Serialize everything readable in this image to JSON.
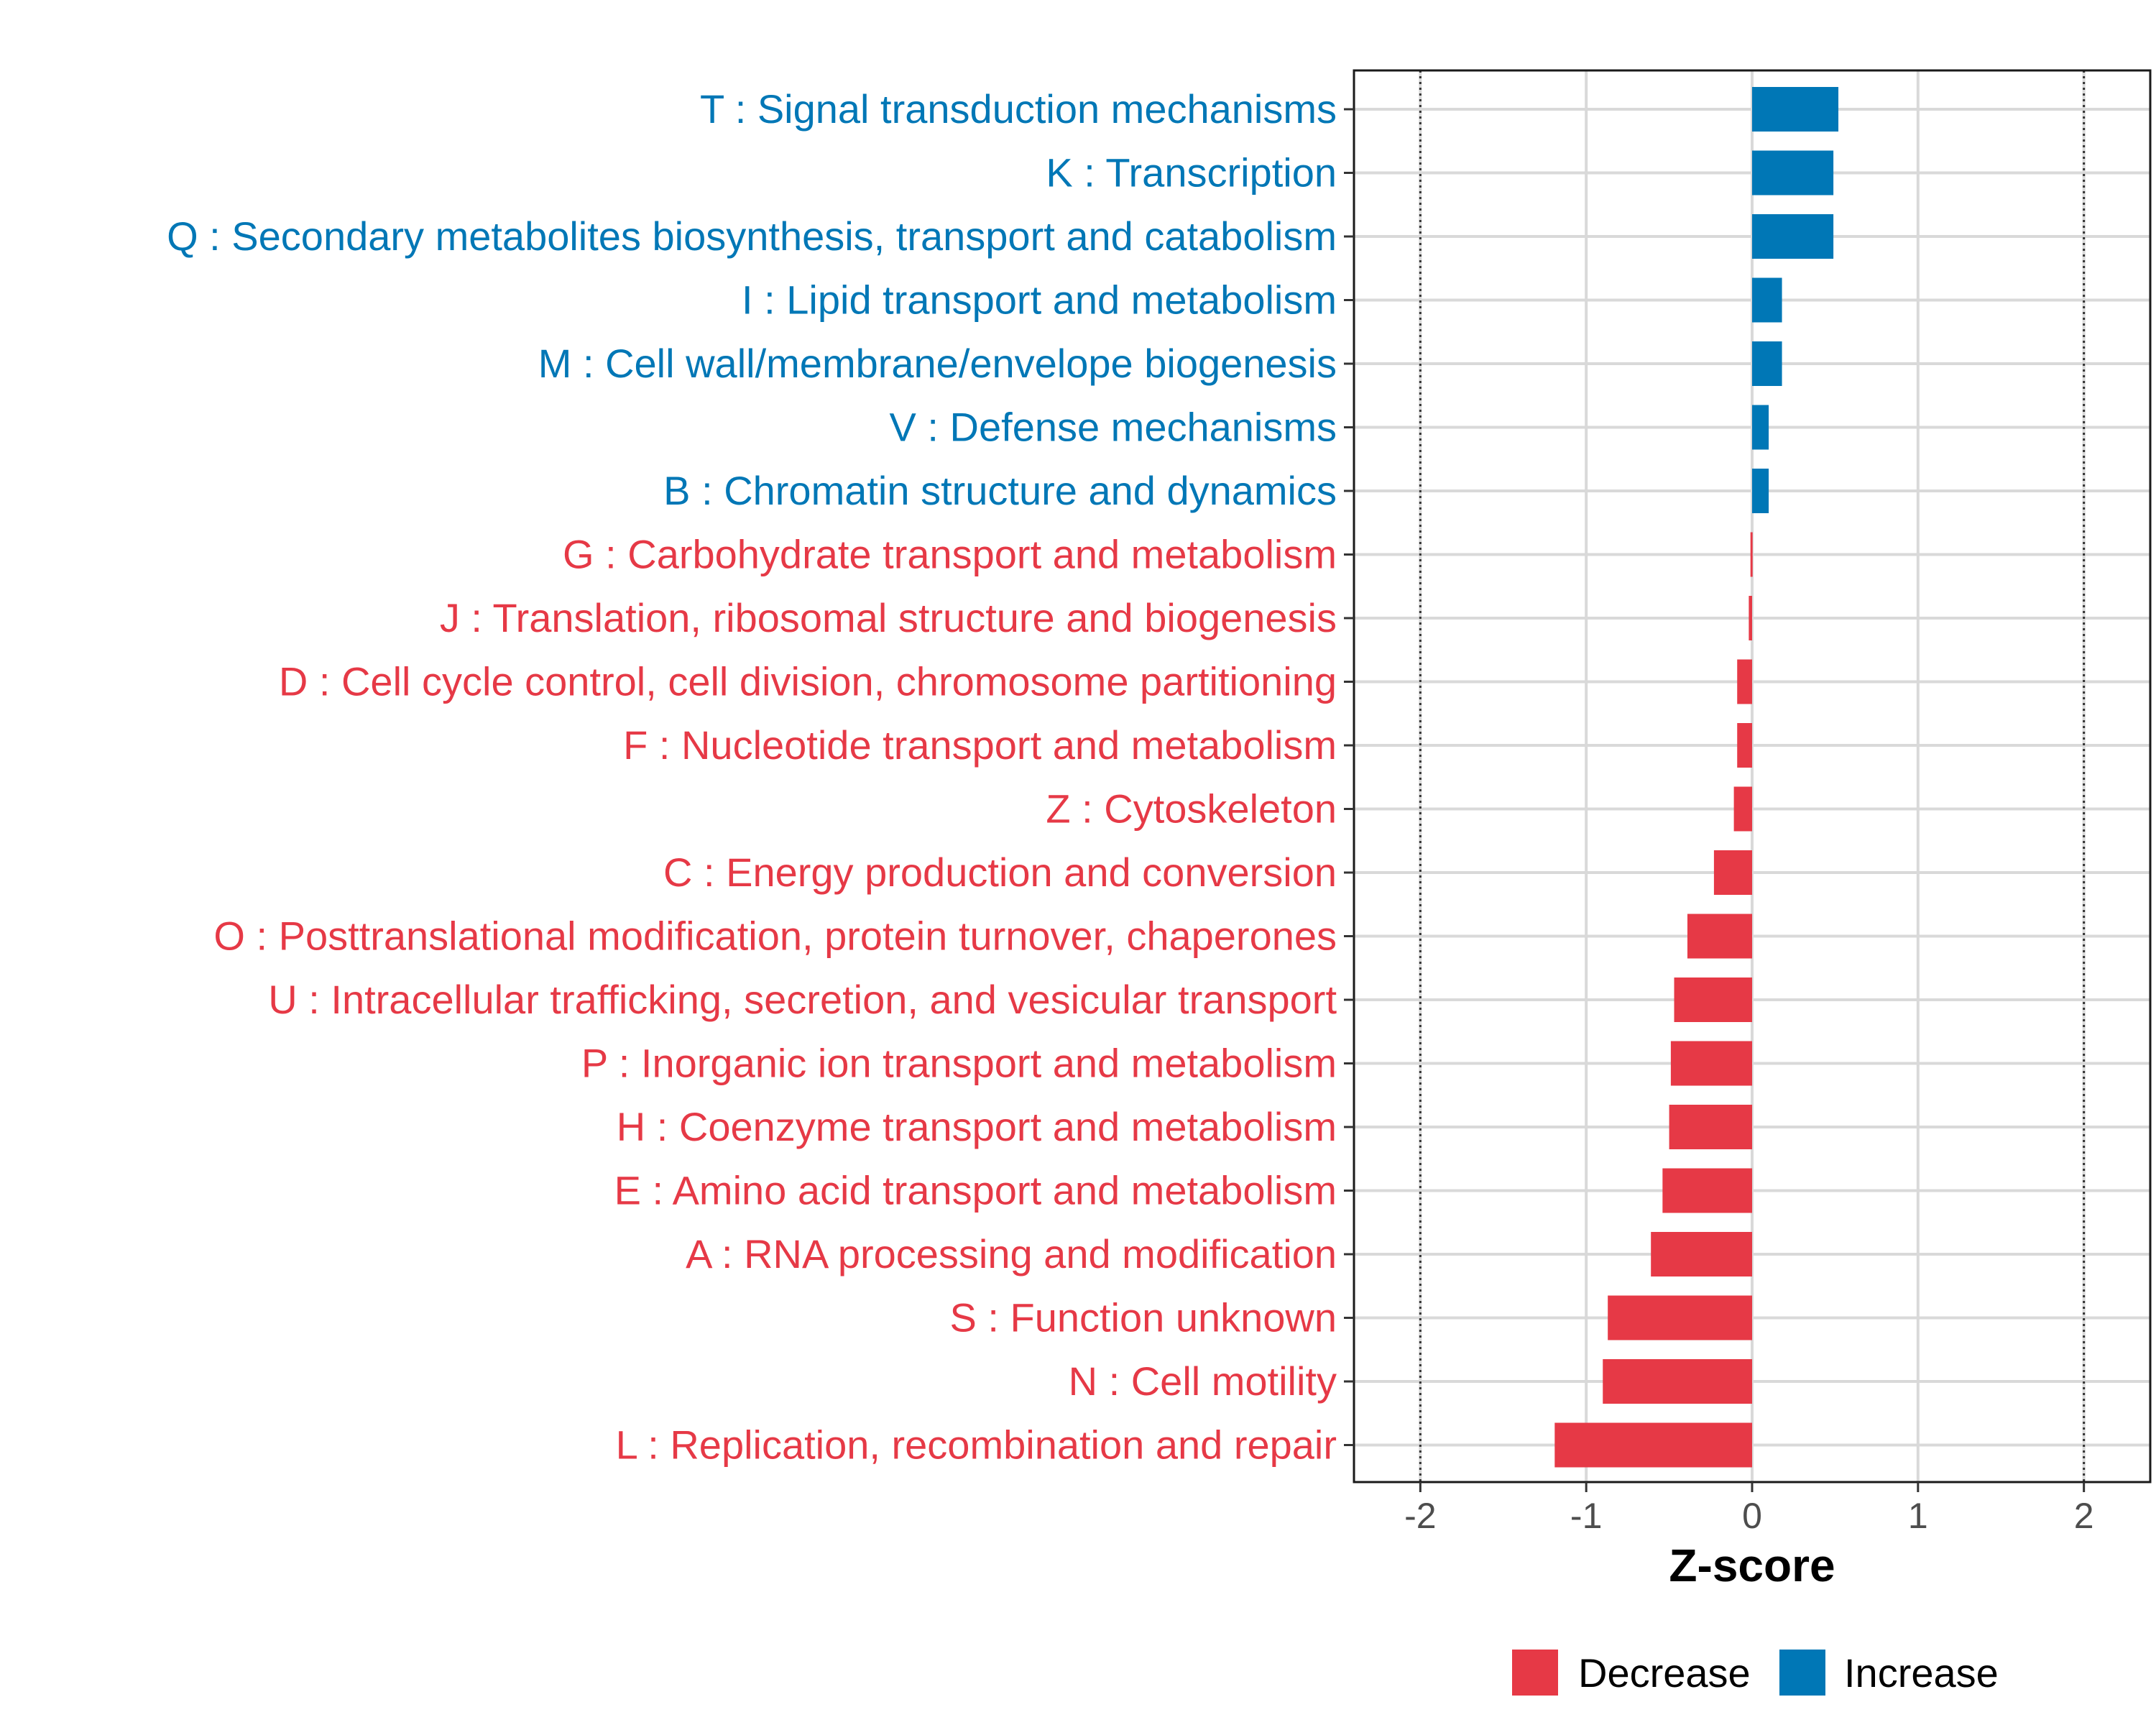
{
  "chart_data": {
    "type": "bar",
    "orientation": "horizontal",
    "title": "",
    "xlabel": "Z-score",
    "ylabel": "",
    "xlim": [
      -2.4,
      2.4
    ],
    "x_ticks": [
      -2,
      -1,
      0,
      1,
      2
    ],
    "x_tick_labels": [
      "-2",
      "-1",
      "0",
      "1",
      "2"
    ],
    "reference_lines": [
      -2,
      2
    ],
    "grid": true,
    "legend_position": "bottom",
    "colors": {
      "Decrease": "#e63946",
      "Increase": "#0077b6"
    },
    "legend": [
      {
        "name": "Decrease",
        "color": "#e63946"
      },
      {
        "name": "Increase",
        "color": "#0077b6"
      }
    ],
    "bars": [
      {
        "label": "T : Signal transduction mechanisms",
        "value": 0.52,
        "direction": "Increase"
      },
      {
        "label": "K : Transcription",
        "value": 0.49,
        "direction": "Increase"
      },
      {
        "label": "Q : Secondary metabolites biosynthesis, transport and catabolism",
        "value": 0.49,
        "direction": "Increase"
      },
      {
        "label": "I : Lipid transport and metabolism",
        "value": 0.18,
        "direction": "Increase"
      },
      {
        "label": "M : Cell wall/membrane/envelope biogenesis",
        "value": 0.18,
        "direction": "Increase"
      },
      {
        "label": "V : Defense mechanisms",
        "value": 0.1,
        "direction": "Increase"
      },
      {
        "label": "B : Chromatin structure and dynamics",
        "value": 0.1,
        "direction": "Increase"
      },
      {
        "label": "G : Carbohydrate transport and metabolism",
        "value": -0.01,
        "direction": "Decrease"
      },
      {
        "label": "J : Translation, ribosomal structure and biogenesis",
        "value": -0.02,
        "direction": "Decrease"
      },
      {
        "label": "D : Cell cycle control, cell division, chromosome partitioning",
        "value": -0.09,
        "direction": "Decrease"
      },
      {
        "label": "F : Nucleotide transport and metabolism",
        "value": -0.09,
        "direction": "Decrease"
      },
      {
        "label": "Z : Cytoskeleton",
        "value": -0.11,
        "direction": "Decrease"
      },
      {
        "label": "C : Energy production and conversion",
        "value": -0.23,
        "direction": "Decrease"
      },
      {
        "label": "O : Posttranslational modification, protein turnover, chaperones",
        "value": -0.39,
        "direction": "Decrease"
      },
      {
        "label": "U : Intracellular trafficking, secretion, and vesicular transport",
        "value": -0.47,
        "direction": "Decrease"
      },
      {
        "label": "P : Inorganic ion transport and metabolism",
        "value": -0.49,
        "direction": "Decrease"
      },
      {
        "label": "H : Coenzyme transport and metabolism",
        "value": -0.5,
        "direction": "Decrease"
      },
      {
        "label": "E : Amino acid transport and metabolism",
        "value": -0.54,
        "direction": "Decrease"
      },
      {
        "label": "A : RNA processing and modification",
        "value": -0.61,
        "direction": "Decrease"
      },
      {
        "label": "S : Function unknown",
        "value": -0.87,
        "direction": "Decrease"
      },
      {
        "label": "N : Cell motility",
        "value": -0.9,
        "direction": "Decrease"
      },
      {
        "label": "L : Replication, recombination and repair",
        "value": -1.19,
        "direction": "Decrease"
      }
    ]
  }
}
